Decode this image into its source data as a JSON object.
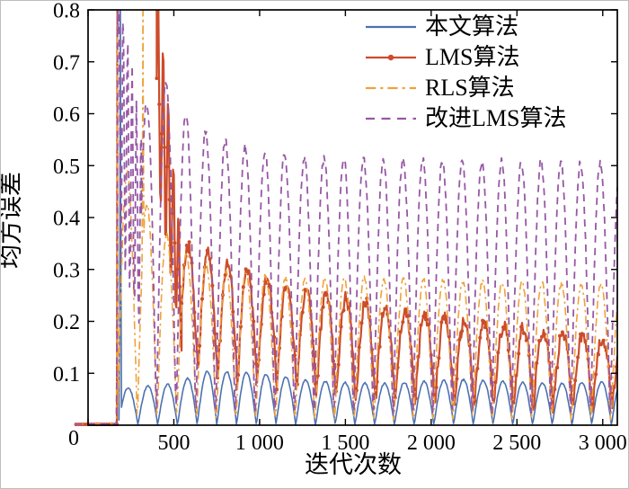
{
  "figure": {
    "background": "#ffffff",
    "border_color": "#bdbdbd",
    "axis_color": "#000000"
  },
  "chart_data": {
    "type": "line",
    "title": "",
    "xlabel": "迭代次数",
    "ylabel": "均方误差",
    "origin_label": "0",
    "xlim": [
      0,
      3085
    ],
    "ylim": [
      0,
      0.8
    ],
    "grid": false,
    "legend_position": "top-right-inside",
    "oscillation_period_iterations": 115,
    "xticks": [
      {
        "v": 0,
        "label": ""
      },
      {
        "v": 500,
        "label": "500"
      },
      {
        "v": 1000,
        "label": "1 000"
      },
      {
        "v": 1500,
        "label": "1 500"
      },
      {
        "v": 2000,
        "label": "2 000"
      },
      {
        "v": 2500,
        "label": "2 500"
      },
      {
        "v": 3000,
        "label": "3 000"
      }
    ],
    "yticks": [
      {
        "v": 0.1,
        "label": "0.1"
      },
      {
        "v": 0.2,
        "label": "0.2"
      },
      {
        "v": 0.3,
        "label": "0.3"
      },
      {
        "v": 0.4,
        "label": "0.4"
      },
      {
        "v": 0.5,
        "label": "0.5"
      },
      {
        "v": 0.6,
        "label": "0.6"
      },
      {
        "v": 0.7,
        "label": "0.7"
      },
      {
        "v": 0.8,
        "label": "0.8"
      }
    ],
    "series": [
      {
        "name": "本文算法",
        "color": "#4C72B0",
        "line_style": "solid",
        "dash": null,
        "width": 1.6,
        "marker": null,
        "seed": 11,
        "noise": 0.0015,
        "behavior": "converges fastest after one transient spike near iteration 190; steady-state MSE oscillates between 0 and about 0.08",
        "segments": [
          {
            "t": "arcs",
            "x0": 180,
            "x1": 3085,
            "period": 115,
            "phase": 176,
            "peaks": [
              [
                180,
                0.07
              ],
              [
                500,
                0.08
              ],
              [
                700,
                0.105
              ],
              [
                1000,
                0.1
              ],
              [
                1300,
                0.085
              ],
              [
                1700,
                0.08
              ],
              [
                2200,
                0.088
              ],
              [
                2700,
                0.08
              ],
              [
                3085,
                0.085
              ]
            ],
            "base": [
              [
                180,
                0
              ],
              [
                3085,
                0
              ]
            ]
          }
        ],
        "spikes": [
          {
            "x": 188,
            "h": 0.88,
            "w": 4
          }
        ]
      },
      {
        "name": "LMS算法",
        "color": "#CC4C2B",
        "line_style": "solid",
        "dash": null,
        "width": 2.2,
        "marker": {
          "shape": "circle",
          "r": 2.0,
          "every": 3
        },
        "seed": 42,
        "noise": 0.013,
        "behavior": "flat near 0 until ~170 iterations, diverges above 0.8 until ~400, re-converges through 400-550, steady-state oscillation peaks decay from ~0.33 to ~0.16",
        "segments": [
          {
            "t": "flat",
            "x0": -70,
            "x1": 168,
            "y": 0.0015
          },
          {
            "t": "plateau",
            "x0": 171,
            "x1": 400,
            "y": 0.88
          },
          {
            "t": "burst",
            "x0": 400,
            "x1": 545,
            "mid0": 0.66,
            "mid1": 0.24,
            "amp0": 0.2,
            "amp1": 0.1,
            "period": 30
          },
          {
            "t": "arcs",
            "x0": 545,
            "x1": 3085,
            "period": 115,
            "phase": 181,
            "peaks": [
              [
                545,
                0.35
              ],
              [
                700,
                0.33
              ],
              [
                900,
                0.3
              ],
              [
                1200,
                0.27
              ],
              [
                1500,
                0.245
              ],
              [
                1800,
                0.225
              ],
              [
                2100,
                0.205
              ],
              [
                2500,
                0.19
              ],
              [
                2800,
                0.175
              ],
              [
                3085,
                0.165
              ]
            ],
            "base": [
              [
                545,
                0.1
              ],
              [
                900,
                0.08
              ],
              [
                1400,
                0.05
              ],
              [
                2000,
                0.035
              ],
              [
                3085,
                0.03
              ]
            ]
          }
        ],
        "spikes": []
      },
      {
        "name": "RLS算法",
        "color": "#EFA23C",
        "line_style": "dash-dot",
        "dash": [
          9,
          4,
          2.5,
          4
        ],
        "width": 1.6,
        "marker": null,
        "seed": 7,
        "noise": 0.006,
        "behavior": "transient spikes near iterations 170 and 320; steady-state MSE oscillates between 0 and ~0.27",
        "segments": [
          {
            "t": "flat",
            "x0": -75,
            "x1": 168,
            "y": 0.002
          },
          {
            "t": "arcs",
            "x0": 170,
            "x1": 3085,
            "period": 115,
            "phase": 172,
            "peaks": [
              [
                170,
                0.52
              ],
              [
                300,
                0.45
              ],
              [
                450,
                0.37
              ],
              [
                600,
                0.32
              ],
              [
                800,
                0.3
              ],
              [
                1100,
                0.285
              ],
              [
                2000,
                0.28
              ],
              [
                3085,
                0.27
              ]
            ],
            "base": [
              [
                170,
                0
              ],
              [
                3085,
                0
              ]
            ]
          }
        ],
        "spikes": [
          {
            "x": 171,
            "h": 0.88,
            "w": 4
          },
          {
            "x": 320,
            "h": 0.88,
            "w": 5
          }
        ]
      },
      {
        "name": "改进LMS算法",
        "color": "#9758A5",
        "line_style": "dashed",
        "dash": [
          8,
          6
        ],
        "width": 1.8,
        "marker": null,
        "seed": 23,
        "noise": 0.008,
        "behavior": "large transient between ~170 and 300 iterations, then steady-state oscillation with peaks decaying from ~0.65 to ~0.5",
        "segments": [
          {
            "t": "flat",
            "x0": -75,
            "x1": 170,
            "y": 0.0025
          },
          {
            "t": "burst",
            "x0": 172,
            "x1": 310,
            "mid0": 0.62,
            "mid1": 0.36,
            "amp0": 0.27,
            "amp1": 0.2,
            "period": 26
          },
          {
            "t": "arcs",
            "x0": 310,
            "x1": 3085,
            "period": 115,
            "phase": 168,
            "peaks": [
              [
                310,
                0.6
              ],
              [
                420,
                0.68
              ],
              [
                520,
                0.62
              ],
              [
                650,
                0.57
              ],
              [
                800,
                0.55
              ],
              [
                1000,
                0.53
              ],
              [
                1300,
                0.515
              ],
              [
                3085,
                0.505
              ]
            ],
            "base": [
              [
                310,
                0
              ],
              [
                3085,
                0
              ]
            ]
          }
        ],
        "spikes": [
          {
            "x": 173,
            "h": 0.88,
            "w": 4
          }
        ]
      }
    ]
  }
}
